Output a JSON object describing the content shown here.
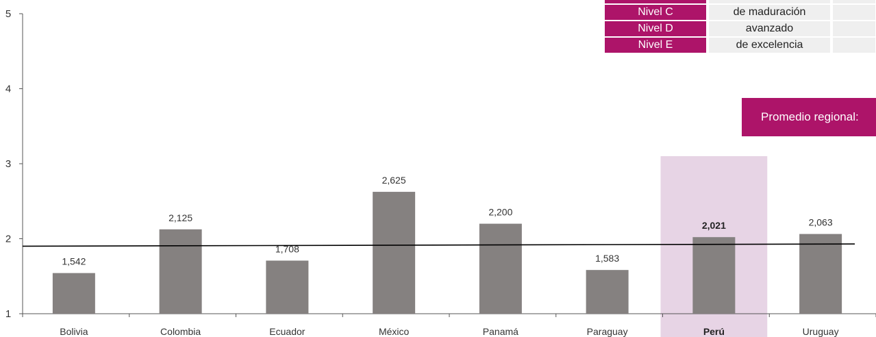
{
  "chart_data": {
    "type": "bar",
    "categories": [
      "Bolivia",
      "Colombia",
      "Ecuador",
      "México",
      "Panamá",
      "Paraguay",
      "Perú",
      "Uruguay"
    ],
    "values": [
      1.542,
      2.125,
      1.708,
      2.625,
      2.2,
      1.583,
      2.021,
      2.063
    ],
    "value_labels": [
      "1,542",
      "2,125",
      "1,708",
      "2,625",
      "2,200",
      "1,583",
      "2,021",
      "2,063"
    ],
    "highlighted_category": "Perú",
    "yticks": [
      "1",
      "2",
      "3",
      "4",
      "5"
    ],
    "ylim": [
      1,
      5
    ],
    "trend_line": {
      "start": 1.9,
      "end": 1.93
    },
    "colors": {
      "bar": "#858180",
      "highlight_band": "#e7d4e5",
      "accent": "#ad1469",
      "trend": "#000000"
    }
  },
  "legend": {
    "rows": [
      {
        "level": "",
        "desc": ""
      },
      {
        "level": "Nivel C",
        "desc": "de maduración"
      },
      {
        "level": "Nivel D",
        "desc": "avanzado"
      },
      {
        "level": "Nivel E",
        "desc": "de excelencia"
      }
    ]
  },
  "promedio_label": "Promedio regional:"
}
